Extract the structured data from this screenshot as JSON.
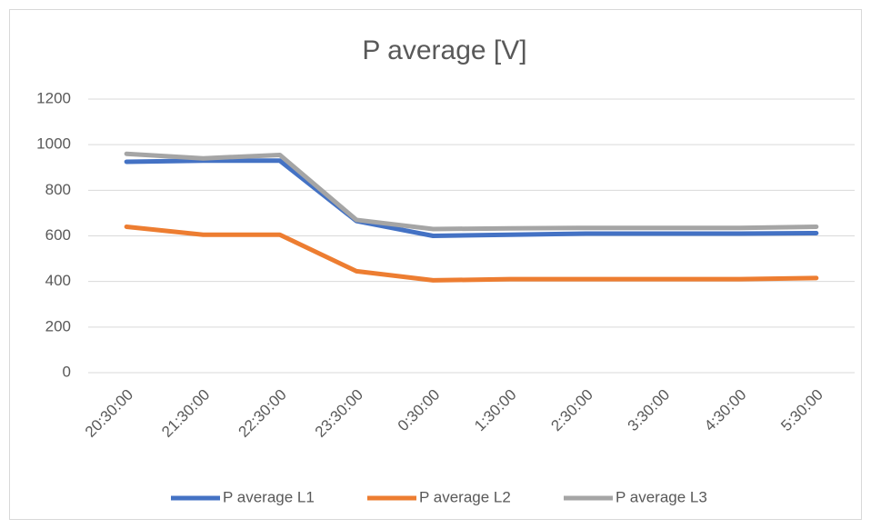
{
  "chart_data": {
    "type": "line",
    "title": "P average [V]",
    "categories": [
      "20:30:00",
      "21:30:00",
      "22:30:00",
      "23:30:00",
      "0:30:00",
      "1:30:00",
      "2:30:00",
      "3:30:00",
      "4:30:00",
      "5:30:00"
    ],
    "series": [
      {
        "name": "P average L1",
        "color": "#4472c4",
        "values": [
          925,
          930,
          930,
          665,
          600,
          605,
          610,
          610,
          610,
          612
        ]
      },
      {
        "name": "P average L2",
        "color": "#ed7d31",
        "values": [
          640,
          605,
          605,
          445,
          405,
          410,
          410,
          410,
          410,
          415
        ]
      },
      {
        "name": "P average L3",
        "color": "#a5a5a5",
        "values": [
          960,
          940,
          955,
          670,
          630,
          633,
          635,
          635,
          635,
          640
        ]
      }
    ],
    "ylim": [
      0,
      1200
    ],
    "yticks": [
      0,
      200,
      400,
      600,
      800,
      1000,
      1200
    ],
    "grid": true,
    "legend": "bottom"
  }
}
